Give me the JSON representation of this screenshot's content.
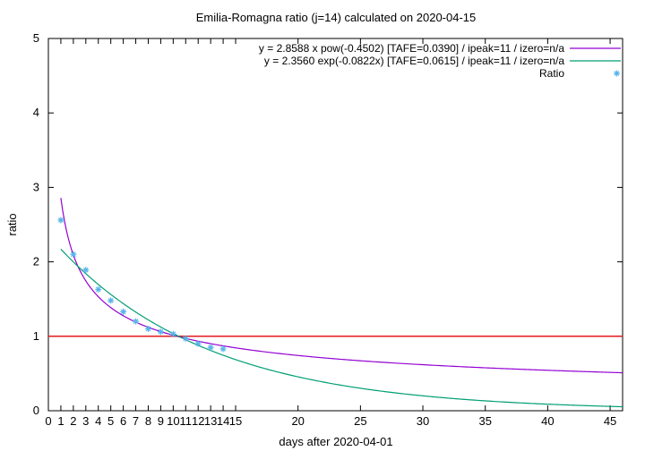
{
  "chart_data": {
    "type": "line",
    "title": "Emilia-Romagna ratio (j=14) calculated on 2020-04-15",
    "xlabel": "days after 2020-04-01",
    "ylabel": "ratio",
    "xlim": [
      0,
      46
    ],
    "ylim": [
      0,
      5
    ],
    "x_ticks": [
      0,
      1,
      2,
      3,
      4,
      5,
      6,
      7,
      8,
      9,
      10,
      11,
      12,
      13,
      14,
      15,
      20,
      25,
      30,
      35,
      40,
      45
    ],
    "y_ticks": [
      0,
      1,
      2,
      3,
      4,
      5
    ],
    "grid": false,
    "legend_position": "top-right",
    "reference_line": {
      "y": 1,
      "color": "#e41a1c"
    },
    "series": [
      {
        "name": "y = 2.8588 x pow(-0.4502)  [TAFE=0.0390] / ipeak=11 / izero=n/a",
        "kind": "line",
        "color": "#9400d3",
        "model": "power",
        "a": 2.8588,
        "b": -0.4502,
        "x_start": 1,
        "x_end": 46
      },
      {
        "name": "y = 2.3560 exp(-0.0822x)  [TAFE=0.0615] / ipeak=11 / izero=n/a",
        "kind": "line",
        "color": "#009e73",
        "model": "exp",
        "a": 2.356,
        "b": -0.0822,
        "x_start": 1,
        "x_end": 46
      },
      {
        "name": "Ratio",
        "kind": "scatter",
        "color": "#56b4e9",
        "x": [
          1,
          2,
          3,
          4,
          5,
          6,
          7,
          8,
          9,
          10,
          11,
          12,
          13,
          14
        ],
        "y": [
          2.56,
          2.1,
          1.89,
          1.63,
          1.48,
          1.33,
          1.2,
          1.1,
          1.06,
          1.03,
          0.97,
          0.9,
          0.85,
          0.83
        ]
      }
    ]
  }
}
